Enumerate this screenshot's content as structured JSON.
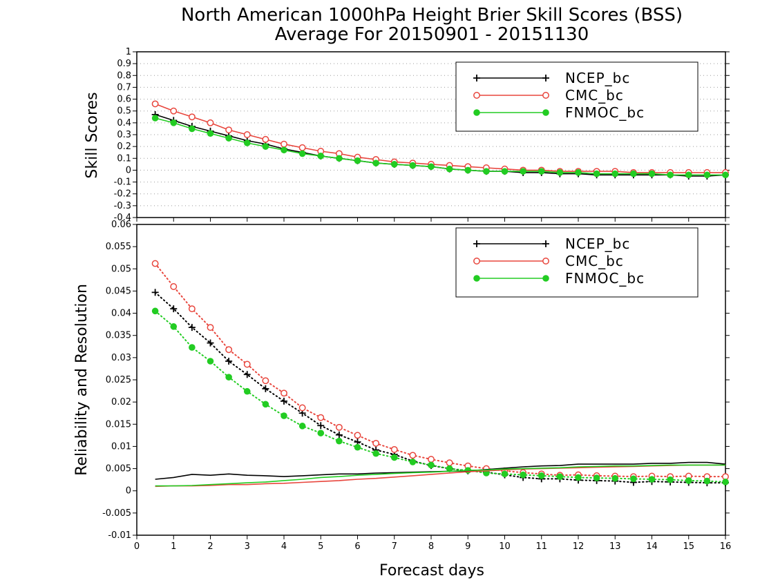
{
  "title": {
    "line1": "North American 1000hPa Height Brier Skill Scores (BSS)",
    "line2": "Average For 20150901 - 20151130"
  },
  "xlabel": "Forecast days",
  "colors": {
    "NCEP_bc": "#000000",
    "CMC_bc": "#e8453c",
    "FNMOC_bc": "#22cc22"
  },
  "chart_data": [
    {
      "type": "line",
      "ylabel": "Skill Scores",
      "xlim": [
        0,
        16
      ],
      "ylim": [
        -0.4,
        1
      ],
      "xticks": [
        "0",
        "1",
        "2",
        "3",
        "4",
        "5",
        "6",
        "7",
        "8",
        "9",
        "10",
        "11",
        "12",
        "13",
        "14",
        "15",
        "16"
      ],
      "yticks": [
        "-0.4",
        "-0.3",
        "-0.2",
        "-0.1",
        "0",
        "0.1",
        "0.2",
        "0.3",
        "0.4",
        "0.5",
        "0.6",
        "0.7",
        "0.8",
        "0.9",
        "1"
      ],
      "grid": true,
      "legend": "top-right",
      "x": [
        0.5,
        1,
        1.5,
        2,
        2.5,
        3,
        3.5,
        4,
        4.5,
        5,
        5.5,
        6,
        6.5,
        7,
        7.5,
        8,
        8.5,
        9,
        9.5,
        10,
        10.5,
        11,
        11.5,
        12,
        12.5,
        13,
        13.5,
        14,
        14.5,
        15,
        15.5,
        16
      ],
      "series": [
        {
          "name": "NCEP_bc",
          "style": "solid",
          "marker": "plus",
          "values": [
            0.47,
            0.42,
            0.37,
            0.33,
            0.29,
            0.25,
            0.22,
            0.18,
            0.15,
            0.12,
            0.1,
            0.08,
            0.06,
            0.05,
            0.04,
            0.03,
            0.01,
            0.0,
            -0.01,
            -0.01,
            -0.02,
            -0.02,
            -0.03,
            -0.03,
            -0.04,
            -0.04,
            -0.04,
            -0.04,
            -0.04,
            -0.05,
            -0.05,
            -0.04
          ]
        },
        {
          "name": "CMC_bc",
          "style": "solid",
          "marker": "circle-open",
          "values": [
            0.56,
            0.5,
            0.45,
            0.4,
            0.34,
            0.3,
            0.26,
            0.22,
            0.19,
            0.16,
            0.14,
            0.11,
            0.09,
            0.07,
            0.06,
            0.05,
            0.04,
            0.03,
            0.02,
            0.01,
            0.0,
            0.0,
            -0.01,
            -0.01,
            -0.01,
            -0.01,
            -0.02,
            -0.02,
            -0.02,
            -0.02,
            -0.02,
            -0.02
          ]
        },
        {
          "name": "FNMOC_bc",
          "style": "solid",
          "marker": "circle-filled",
          "values": [
            0.44,
            0.4,
            0.35,
            0.31,
            0.27,
            0.23,
            0.2,
            0.17,
            0.14,
            0.12,
            0.1,
            0.08,
            0.06,
            0.05,
            0.04,
            0.03,
            0.01,
            0.0,
            -0.01,
            -0.01,
            -0.01,
            -0.01,
            -0.02,
            -0.02,
            -0.03,
            -0.03,
            -0.03,
            -0.03,
            -0.04,
            -0.04,
            -0.04,
            -0.04
          ]
        }
      ]
    },
    {
      "type": "line",
      "ylabel": "Reliability and Resolution",
      "xlim": [
        0,
        16
      ],
      "ylim": [
        -0.01,
        0.06
      ],
      "xticks": [
        "0",
        "1",
        "2",
        "3",
        "4",
        "5",
        "6",
        "7",
        "8",
        "9",
        "10",
        "11",
        "12",
        "13",
        "14",
        "15",
        "16"
      ],
      "yticks": [
        "-0.01",
        "-0.005",
        "0",
        "0.005",
        "0.01",
        "0.015",
        "0.02",
        "0.025",
        "0.03",
        "0.035",
        "0.04",
        "0.045",
        "0.05",
        "0.055",
        "0.06"
      ],
      "grid": false,
      "legend": "top-right",
      "x": [
        0.5,
        1,
        1.5,
        2,
        2.5,
        3,
        3.5,
        4,
        4.5,
        5,
        5.5,
        6,
        6.5,
        7,
        7.5,
        8,
        8.5,
        9,
        9.5,
        10,
        10.5,
        11,
        11.5,
        12,
        12.5,
        13,
        13.5,
        14,
        14.5,
        15,
        15.5,
        16
      ],
      "series": [
        {
          "name": "NCEP_bc",
          "label": "Resolution (dotted)",
          "style": "dotted",
          "marker": "plus",
          "values": [
            0.0447,
            0.041,
            0.0368,
            0.0333,
            0.0292,
            0.0262,
            0.023,
            0.0202,
            0.0175,
            0.0147,
            0.0126,
            0.011,
            0.0092,
            0.0082,
            0.0067,
            0.0057,
            0.005,
            0.0045,
            0.0042,
            0.0036,
            0.003,
            0.0027,
            0.0027,
            0.0024,
            0.0023,
            0.0022,
            0.0019,
            0.0021,
            0.002,
            0.0019,
            0.0018,
            0.0018
          ]
        },
        {
          "name": "CMC_bc",
          "label": "Resolution (dotted)",
          "style": "dotted",
          "marker": "circle-open",
          "values": [
            0.0512,
            0.046,
            0.041,
            0.0368,
            0.0318,
            0.0285,
            0.0248,
            0.022,
            0.0187,
            0.0165,
            0.0143,
            0.0125,
            0.0107,
            0.0093,
            0.008,
            0.0071,
            0.0063,
            0.0056,
            0.005,
            0.0045,
            0.0041,
            0.0038,
            0.0035,
            0.0036,
            0.0034,
            0.0033,
            0.0032,
            0.0033,
            0.0032,
            0.0033,
            0.0032,
            0.0032
          ]
        },
        {
          "name": "FNMOC_bc",
          "label": "Resolution (dotted)",
          "style": "dotted",
          "marker": "circle-filled",
          "values": [
            0.0405,
            0.037,
            0.0323,
            0.0292,
            0.0256,
            0.0224,
            0.0195,
            0.0169,
            0.0146,
            0.013,
            0.0112,
            0.0098,
            0.0084,
            0.0075,
            0.0065,
            0.0058,
            0.005,
            0.0046,
            0.004,
            0.0038,
            0.0036,
            0.0034,
            0.0032,
            0.003,
            0.0029,
            0.0028,
            0.0027,
            0.0026,
            0.0025,
            0.0023,
            0.0022,
            0.002
          ]
        },
        {
          "name": "NCEP_bc",
          "label": "Reliability (solid)",
          "style": "solid",
          "marker": "none",
          "values": [
            0.0026,
            0.003,
            0.0037,
            0.0035,
            0.0038,
            0.0035,
            0.0034,
            0.0032,
            0.0034,
            0.0036,
            0.0038,
            0.0038,
            0.004,
            0.0041,
            0.0042,
            0.0043,
            0.0044,
            0.0045,
            0.0048,
            0.0051,
            0.0054,
            0.0056,
            0.0057,
            0.006,
            0.006,
            0.006,
            0.006,
            0.0062,
            0.0062,
            0.0064,
            0.0064,
            0.006
          ]
        },
        {
          "name": "CMC_bc",
          "label": "Reliability (solid)",
          "style": "solid",
          "marker": "none",
          "values": [
            0.001,
            0.0011,
            0.0011,
            0.0012,
            0.0014,
            0.0014,
            0.0016,
            0.0017,
            0.0019,
            0.0021,
            0.0023,
            0.0026,
            0.0028,
            0.0031,
            0.0034,
            0.0037,
            0.004,
            0.0043,
            0.0045,
            0.0047,
            0.0049,
            0.005,
            0.0051,
            0.0052,
            0.0053,
            0.0054,
            0.0055,
            0.0056,
            0.0057,
            0.0058,
            0.0058,
            0.0058
          ]
        },
        {
          "name": "FNMOC_bc",
          "label": "Reliability (solid)",
          "style": "solid",
          "marker": "none",
          "values": [
            0.0011,
            0.0011,
            0.0012,
            0.0014,
            0.0016,
            0.0018,
            0.002,
            0.0023,
            0.0026,
            0.003,
            0.0032,
            0.0035,
            0.0037,
            0.0039,
            0.0041,
            0.0042,
            0.0044,
            0.0046,
            0.0047,
            0.0049,
            0.005,
            0.0051,
            0.0052,
            0.0054,
            0.0055,
            0.0056,
            0.0056,
            0.0057,
            0.0058,
            0.0058,
            0.0058,
            0.0058
          ]
        }
      ]
    }
  ]
}
